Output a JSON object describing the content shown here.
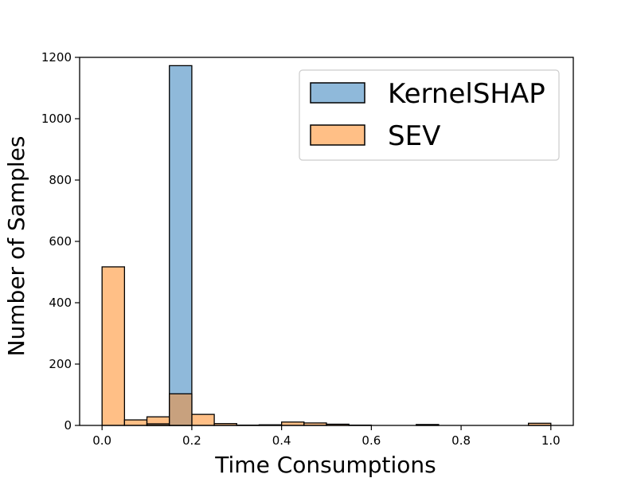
{
  "chart_data": {
    "type": "bar",
    "title": "",
    "xlabel": "Time Consumptions",
    "ylabel": "Number of Samples",
    "xlim": [
      -0.05,
      1.05
    ],
    "ylim": [
      0,
      1200
    ],
    "xticks": [
      "0.0",
      "0.2",
      "0.4",
      "0.6",
      "0.8",
      "1.0"
    ],
    "xtick_values": [
      0.0,
      0.2,
      0.4,
      0.6,
      0.8,
      1.0
    ],
    "yticks": [
      "0",
      "200",
      "400",
      "600",
      "800",
      "1000",
      "1200"
    ],
    "ytick_values": [
      0,
      200,
      400,
      600,
      800,
      1000,
      1200
    ],
    "bin_edges": [
      0.0,
      0.05,
      0.1,
      0.15,
      0.2,
      0.25,
      0.3,
      0.35,
      0.4,
      0.45,
      0.5,
      0.55,
      0.6,
      0.65,
      0.7,
      0.75,
      0.8,
      0.85,
      0.9,
      0.95,
      1.0
    ],
    "series": [
      {
        "name": "KernelSHAP",
        "color": "#1f77b4",
        "fill": "#8fb9da",
        "values": [
          0,
          0,
          5,
          1173,
          0,
          0,
          0,
          0,
          0,
          0,
          0,
          0,
          0,
          0,
          0,
          0,
          0,
          0,
          0,
          0
        ]
      },
      {
        "name": "SEV",
        "color": "#ff7f0e",
        "fill": "#ffbf86",
        "values": [
          517,
          18,
          28,
          103,
          36,
          6,
          1,
          2,
          11,
          8,
          4,
          1,
          0,
          0,
          3,
          0,
          0,
          0,
          0,
          7
        ]
      }
    ],
    "overlap_fill": "#c8a17e",
    "legend_position": "upper-right",
    "grid": false
  }
}
